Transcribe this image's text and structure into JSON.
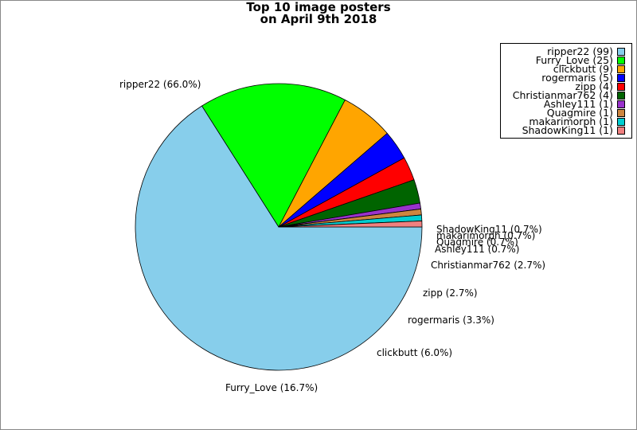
{
  "chart_data": {
    "type": "pie",
    "title_lines": [
      "Top 10 image posters",
      "on April 9th 2018"
    ],
    "legend_position": "top-right",
    "slices": [
      {
        "name": "ripper22",
        "count": 99,
        "percent_label": "66.0%",
        "color": "#87CEEB"
      },
      {
        "name": "Furry_Love",
        "count": 25,
        "percent_label": "16.7%",
        "color": "#00FF00"
      },
      {
        "name": "clickbutt",
        "count": 9,
        "percent_label": "6.0%",
        "color": "#FFA500"
      },
      {
        "name": "rogermaris",
        "count": 5,
        "percent_label": "3.3%",
        "color": "#0000FF"
      },
      {
        "name": "zipp",
        "count": 4,
        "percent_label": "2.7%",
        "color": "#FF0000"
      },
      {
        "name": "Christianmar762",
        "count": 4,
        "percent_label": "2.7%",
        "color": "#006400"
      },
      {
        "name": "Ashley111",
        "count": 1,
        "percent_label": "0.7%",
        "color": "#9932CC"
      },
      {
        "name": "Quagmire",
        "count": 1,
        "percent_label": "0.7%",
        "color": "#CD853F"
      },
      {
        "name": "makarimorph",
        "count": 1,
        "percent_label": "0.7%",
        "color": "#00CED1"
      },
      {
        "name": "ShadowKing11",
        "count": 1,
        "percent_label": "0.7%",
        "color": "#F08080"
      }
    ]
  }
}
